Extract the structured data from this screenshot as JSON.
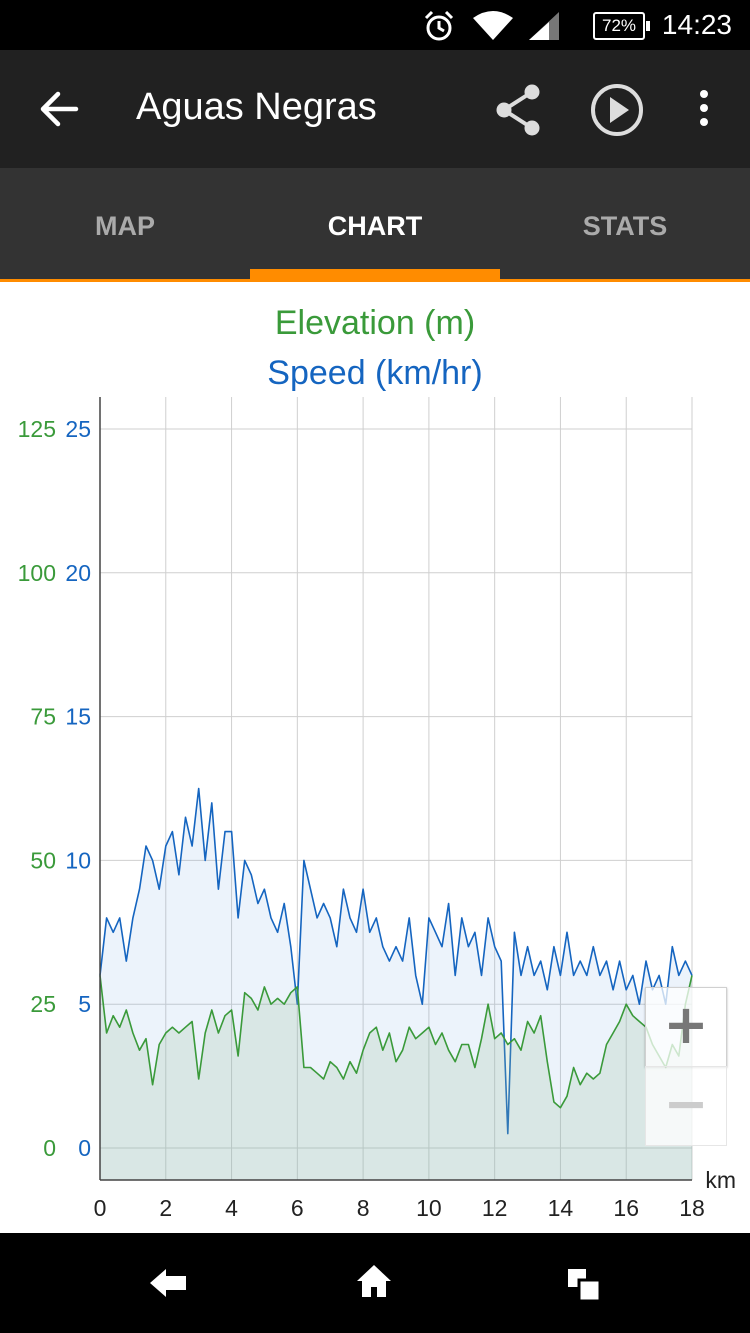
{
  "status_bar": {
    "time": "14:23",
    "battery": "72%"
  },
  "app_bar": {
    "title": "Aguas Negras"
  },
  "tabs": [
    {
      "label": "MAP"
    },
    {
      "label": "CHART"
    },
    {
      "label": "STATS"
    }
  ],
  "icons": {
    "back": "arrow-left-icon",
    "share": "share-icon",
    "play": "play-circle-icon",
    "more": "more-vert-icon",
    "nav_back": "back-icon",
    "nav_home": "home-icon",
    "nav_recents": "recents-icon"
  },
  "colors": {
    "accent": "#ff8c00",
    "elevation": "#3a9a3a",
    "speed": "#1565c0"
  },
  "zoom": {
    "in_label": "+",
    "out_label": "−"
  },
  "chart_data": {
    "type": "area",
    "title": "Elevation (m)",
    "subtitle": "Speed (km/hr)",
    "xlabel": "km",
    "xlim": [
      0,
      18
    ],
    "x_ticks": [
      0,
      2,
      4,
      6,
      8,
      10,
      12,
      14,
      16,
      18
    ],
    "y_left": {
      "ticks": [
        0,
        25,
        50,
        75,
        100,
        125
      ],
      "range": [
        0,
        125
      ]
    },
    "y_right": {
      "ticks": [
        0,
        5,
        10,
        15,
        20,
        25
      ],
      "range": [
        0,
        25
      ]
    },
    "grid": true,
    "series": [
      {
        "name": "Speed (km/hr)",
        "axis": "right",
        "x": [
          0,
          0.2,
          0.4,
          0.6,
          0.8,
          1.0,
          1.2,
          1.4,
          1.6,
          1.8,
          2.0,
          2.2,
          2.4,
          2.6,
          2.8,
          3.0,
          3.2,
          3.4,
          3.6,
          3.8,
          4.0,
          4.2,
          4.4,
          4.6,
          4.8,
          5.0,
          5.2,
          5.4,
          5.6,
          5.8,
          6.0,
          6.2,
          6.4,
          6.6,
          6.8,
          7.0,
          7.2,
          7.4,
          7.6,
          7.8,
          8.0,
          8.2,
          8.4,
          8.6,
          8.8,
          9.0,
          9.2,
          9.4,
          9.6,
          9.8,
          10.0,
          10.2,
          10.4,
          10.6,
          10.8,
          11.0,
          11.2,
          11.4,
          11.6,
          11.8,
          12.0,
          12.2,
          12.4,
          12.6,
          12.8,
          13.0,
          13.2,
          13.4,
          13.6,
          13.8,
          14.0,
          14.2,
          14.4,
          14.6,
          14.8,
          15.0,
          15.2,
          15.4,
          15.6,
          15.8,
          16.0,
          16.2,
          16.4,
          16.6,
          16.8,
          17.0,
          17.2,
          17.4,
          17.6,
          17.8,
          18.0
        ],
        "values": [
          6,
          8,
          7.5,
          8,
          6.5,
          8,
          9,
          10.5,
          10,
          9,
          10.5,
          11,
          9.5,
          11.5,
          10.5,
          12.5,
          10,
          12,
          9,
          11,
          11,
          8,
          10,
          9.5,
          8.5,
          9,
          8,
          7.5,
          8.5,
          7,
          5,
          10,
          9,
          8,
          8.5,
          8,
          7,
          9,
          8,
          7.5,
          9,
          7.5,
          8,
          7,
          6.5,
          7,
          6.5,
          8,
          6,
          5,
          8,
          7.5,
          7,
          8.5,
          6,
          8,
          7,
          7.5,
          6,
          8,
          7,
          6.5,
          0.5,
          7.5,
          6,
          7,
          6,
          6.5,
          5.5,
          7,
          6,
          7.5,
          6,
          6.5,
          6,
          7,
          6,
          6.5,
          5.5,
          6.5,
          5.5,
          6,
          5,
          6.5,
          5.5,
          6,
          5,
          7,
          6,
          6.5,
          6
        ]
      },
      {
        "name": "Elevation (m)",
        "axis": "left",
        "x": [
          0,
          0.2,
          0.4,
          0.6,
          0.8,
          1.0,
          1.2,
          1.4,
          1.6,
          1.8,
          2.0,
          2.2,
          2.4,
          2.6,
          2.8,
          3.0,
          3.2,
          3.4,
          3.6,
          3.8,
          4.0,
          4.2,
          4.4,
          4.6,
          4.8,
          5.0,
          5.2,
          5.4,
          5.6,
          5.8,
          6.0,
          6.2,
          6.4,
          6.6,
          6.8,
          7.0,
          7.2,
          7.4,
          7.6,
          7.8,
          8.0,
          8.2,
          8.4,
          8.6,
          8.8,
          9.0,
          9.2,
          9.4,
          9.6,
          9.8,
          10.0,
          10.2,
          10.4,
          10.6,
          10.8,
          11.0,
          11.2,
          11.4,
          11.6,
          11.8,
          12.0,
          12.2,
          12.4,
          12.6,
          12.8,
          13.0,
          13.2,
          13.4,
          13.6,
          13.8,
          14.0,
          14.2,
          14.4,
          14.6,
          14.8,
          15.0,
          15.2,
          15.4,
          15.6,
          15.8,
          16.0,
          16.2,
          16.4,
          16.6,
          16.8,
          17.0,
          17.2,
          17.4,
          17.6,
          17.8,
          18.0
        ],
        "values": [
          30,
          20,
          23,
          21,
          24,
          20,
          17,
          19,
          11,
          18,
          20,
          21,
          20,
          21,
          22,
          12,
          20,
          24,
          20,
          23,
          24,
          16,
          27,
          26,
          24,
          28,
          25,
          26,
          25,
          27,
          28,
          14,
          14,
          13,
          12,
          15,
          14,
          12,
          15,
          13,
          17,
          20,
          21,
          17,
          20,
          15,
          17,
          21,
          19,
          20,
          21,
          18,
          20,
          17,
          15,
          18,
          18,
          14,
          19,
          25,
          19,
          20,
          18,
          19,
          17,
          22,
          20,
          23,
          15,
          8,
          7,
          9,
          14,
          11,
          13,
          12,
          13,
          18,
          20,
          22,
          25,
          23,
          22,
          21,
          18,
          16,
          14,
          18,
          16,
          25,
          30
        ]
      }
    ]
  }
}
